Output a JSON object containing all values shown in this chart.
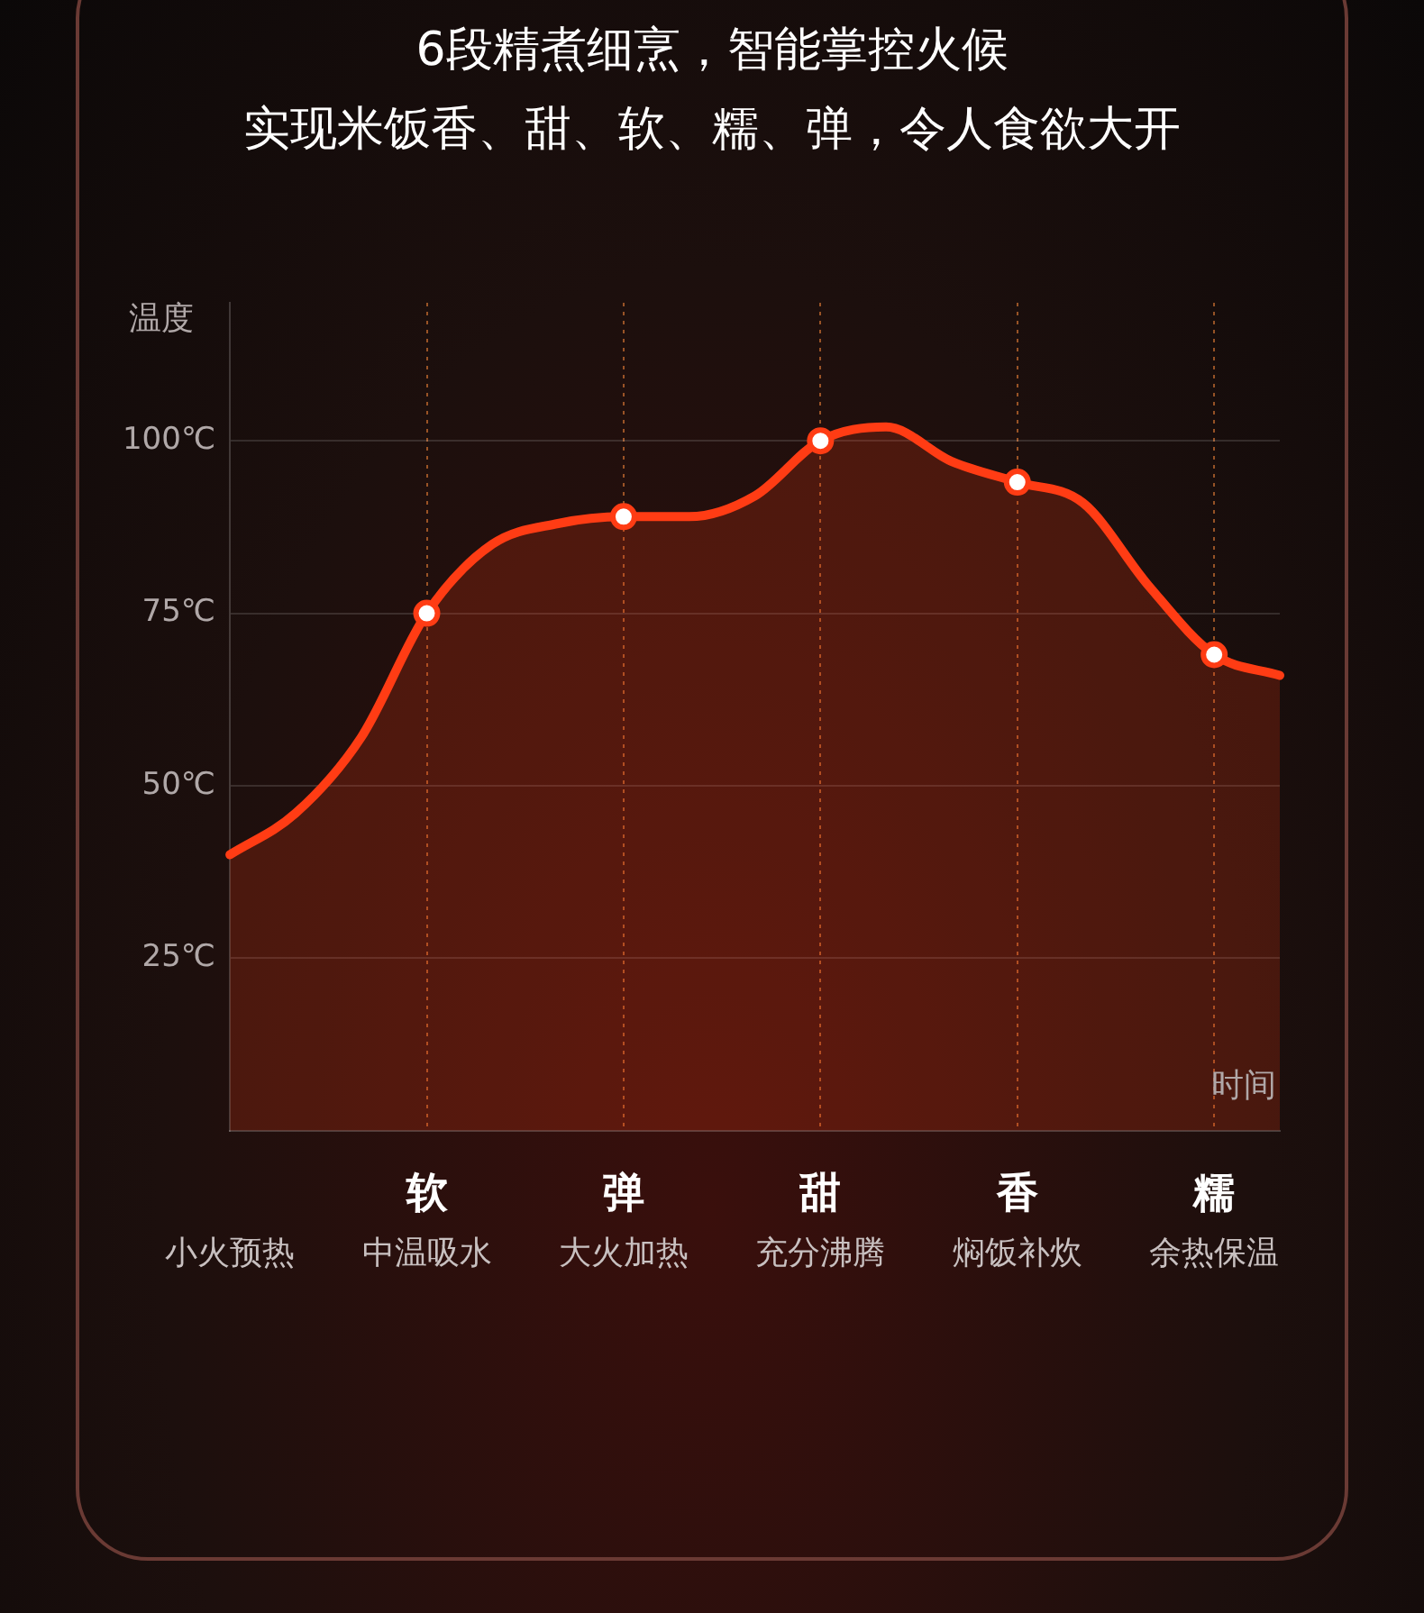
{
  "chart_data": {
    "type": "area",
    "title": "6段精煮细烹，智能掌控火候",
    "subtitle": "实现米饭香、甜、软、糯、弹，令人食欲大开",
    "ylabel": "温度",
    "xlabel": "时间",
    "categories": [
      "小火预热",
      null,
      null,
      "中温吸水",
      null,
      null,
      "大火加热",
      null,
      null,
      "充分沸腾",
      null,
      null,
      "焖饭补炊",
      null,
      null,
      "余热保温",
      null
    ],
    "series": [
      {
        "color": "#ff3c14",
        "values": [
          40,
          46,
          57,
          75,
          85,
          88,
          89,
          89,
          92,
          100,
          102,
          97,
          94,
          91,
          79,
          69,
          66
        ]
      },
      {
        "type": "scatter",
        "color": "#ff3c14",
        "marker": "circle",
        "values": [
          null,
          null,
          null,
          75,
          null,
          null,
          89,
          null,
          null,
          100,
          null,
          null,
          94,
          null,
          null,
          69,
          null
        ]
      }
    ],
    "annotations": [
      "软",
      "弹",
      "甜",
      "香",
      "糯"
    ],
    "ylim": [
      0,
      120
    ],
    "yticks": [
      {
        "value": 25,
        "label": "25℃"
      },
      {
        "value": 50,
        "label": "50℃"
      },
      {
        "value": 75,
        "label": "75℃"
      },
      {
        "value": 100,
        "label": "100℃"
      }
    ],
    "grid": true
  }
}
